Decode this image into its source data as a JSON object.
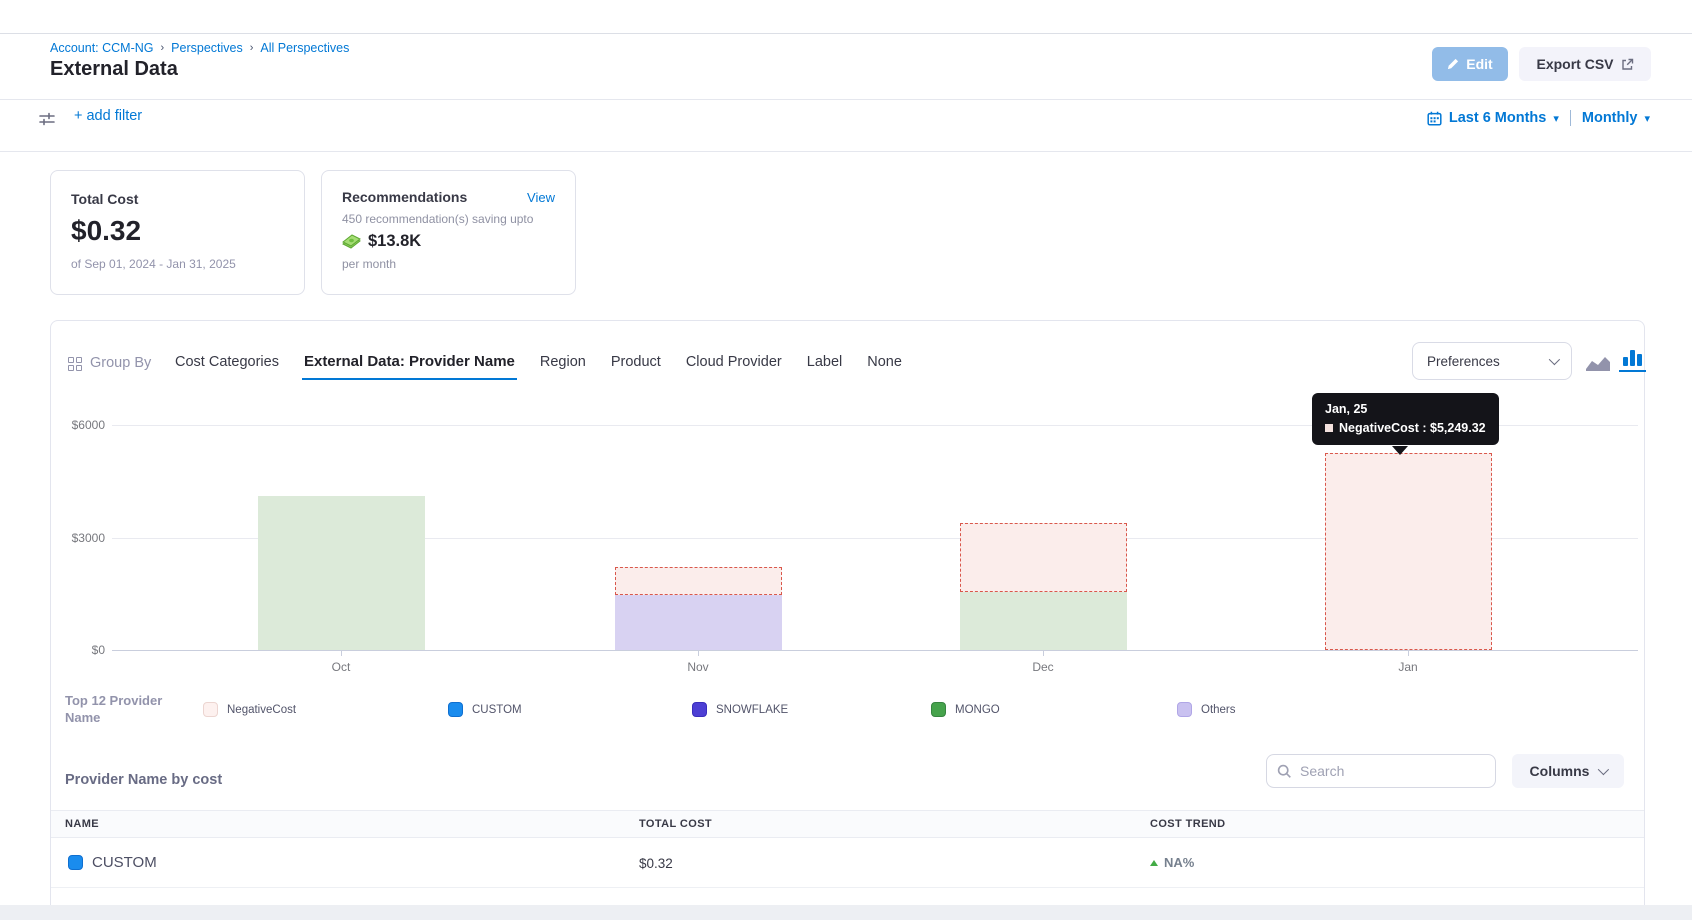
{
  "header": {
    "breadcrumb": [
      "Account: CCM-NG",
      "Perspectives",
      "All Perspectives"
    ],
    "title": "External Data",
    "edit_label": "Edit",
    "export_label": "Export CSV"
  },
  "filter_bar": {
    "add_filter_label": "+ add filter",
    "date_range_label": "Last 6 Months",
    "granularity_label": "Monthly"
  },
  "summary": {
    "total_cost": {
      "label": "Total Cost",
      "value": "$0.32",
      "period": "of Sep 01, 2024 - Jan 31, 2025"
    },
    "recommendations": {
      "label": "Recommendations",
      "view_label": "View",
      "line1": "450 recommendation(s) saving upto",
      "amount": "$13.8K",
      "line2": "per month"
    }
  },
  "group_by": {
    "label": "Group By",
    "tabs": [
      {
        "label": "Cost Categories",
        "active": false
      },
      {
        "label": "External Data: Provider Name",
        "active": true
      },
      {
        "label": "Region",
        "active": false
      },
      {
        "label": "Product",
        "active": false
      },
      {
        "label": "Cloud Provider",
        "active": false
      },
      {
        "label": "Label",
        "active": false
      },
      {
        "label": "None",
        "active": false
      }
    ],
    "preferences_label": "Preferences"
  },
  "chart_data": {
    "type": "bar",
    "stacked": true,
    "title": "",
    "xlabel": "",
    "ylabel": "",
    "categories": [
      "Oct",
      "Nov",
      "Dec",
      "Jan"
    ],
    "series": [
      {
        "name": "MONGO",
        "values": [
          4100,
          0,
          1550,
          0
        ],
        "color": "#dcead9",
        "dashed": false,
        "border_color": null
      },
      {
        "name": "Others",
        "values": [
          0,
          1460,
          0,
          0
        ],
        "color": "#d8d2f2",
        "dashed": false,
        "border_color": null
      },
      {
        "name": "NegativeCost",
        "values": [
          0,
          760,
          1850,
          5249.32
        ],
        "color": "#fbedeb",
        "dashed": true,
        "border_color": "#d9584c"
      }
    ],
    "yticks": [
      {
        "label": "$6000",
        "value": 6000
      },
      {
        "label": "$3000",
        "value": 3000
      },
      {
        "label": "$0",
        "value": 0
      }
    ],
    "ylim": [
      0,
      6800
    ],
    "grid": true,
    "legend_position": "bottom",
    "legend_title": "Top 12 Provider Name",
    "legend": [
      {
        "label": "NegativeCost",
        "fill": "#fdf1ef",
        "border": "#ecd5d1"
      },
      {
        "label": "CUSTOM",
        "fill": "#1a8cee",
        "border": "#0f6fd0"
      },
      {
        "label": "SNOWFLAKE",
        "fill": "#4d3fd4",
        "border": "#3a2dbd"
      },
      {
        "label": "MONGO",
        "fill": "#46a34c",
        "border": "#378540"
      },
      {
        "label": "Others",
        "fill": "#c9c1f0",
        "border": "#b0a6e6"
      }
    ],
    "tooltip": {
      "title": "Jan, 25",
      "text": "NegativeCost : $5,249.32"
    }
  },
  "table": {
    "title": "Provider Name by cost",
    "search_placeholder": "Search",
    "columns_label": "Columns",
    "headers": [
      "NAME",
      "TOTAL COST",
      "COST TREND"
    ],
    "rows": [
      {
        "name": "CUSTOM",
        "swatch_fill": "#1a8cee",
        "swatch_border": "#0f6fd0",
        "total_cost": "$0.32",
        "cost_trend": "NA%"
      }
    ]
  },
  "colors": {
    "primary_blue": "#0278d5",
    "tooltip_bg": "#141419",
    "negative_dashed_border": "#d9584c"
  }
}
